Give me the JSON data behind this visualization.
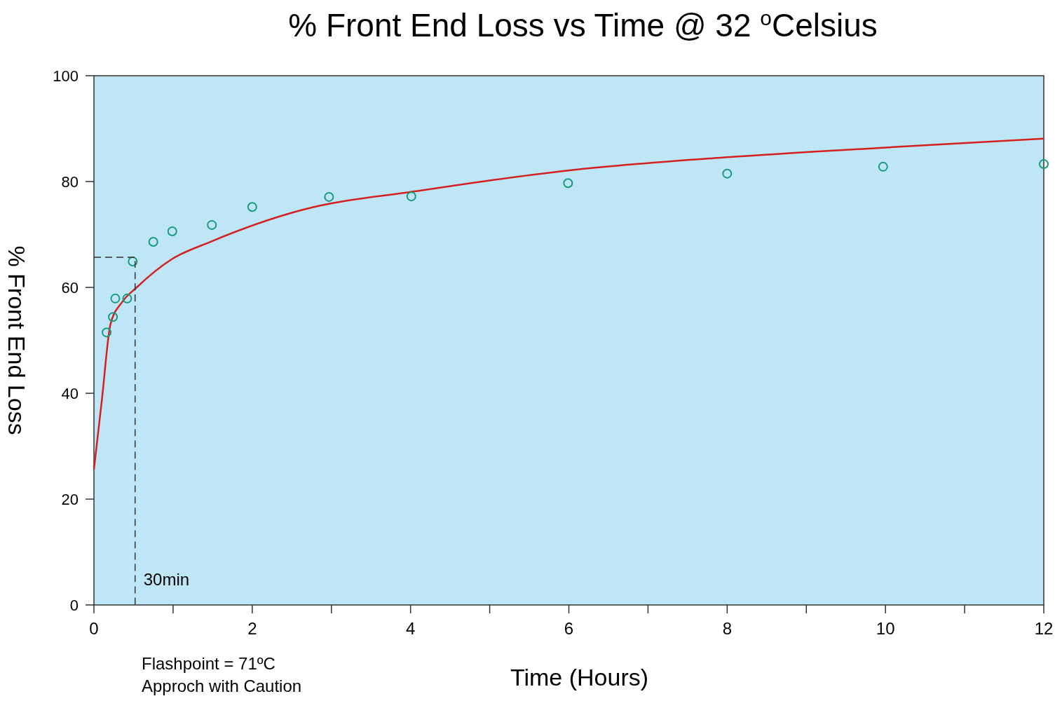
{
  "chart_data": {
    "type": "scatter",
    "title": "% Front End Loss vs Time @ 32 $^{o}$Celsius",
    "xlabel": "Time (Hours)",
    "ylabel": "% Front End Loss",
    "xlim": [
      0,
      12
    ],
    "ylim": [
      0,
      100
    ],
    "xticks": [
      0,
      {
        "value": 1,
        "label": null
      },
      2,
      {
        "value": 3,
        "label": null
      },
      4,
      {
        "value": 5,
        "label": null
      },
      6,
      {
        "value": 7,
        "label": null
      },
      8,
      {
        "value": 9,
        "label": null
      },
      10,
      {
        "value": 11,
        "label": null
      },
      12
    ],
    "yticks": [
      0,
      20,
      40,
      60,
      80,
      100
    ],
    "grid": false,
    "series": [
      {
        "type": "line",
        "color": "#d42020",
        "line_style": "solid",
        "marker": "none",
        "x": [
          0,
          0.1,
          0.21,
          0.36,
          0.54,
          0.98,
          1.47,
          2.62,
          4.13,
          5.99,
          8,
          9.97,
          12
        ],
        "values": [
          25.6,
          38.7,
          53.1,
          57.3,
          60,
          65.3,
          68.6,
          74.6,
          78.3,
          82.1,
          84.6,
          86.4,
          88.1
        ]
      },
      {
        "color": "#1a9a7a",
        "marker": "circle",
        "x": [
          0.16,
          0.24,
          0.27,
          0.42,
          0.49,
          0.75,
          0.99,
          1.49,
          2,
          2.97,
          4.01,
          5.99,
          8,
          9.97,
          12
        ],
        "values": [
          51.5,
          54.4,
          57.9,
          57.9,
          64.9,
          68.6,
          70.6,
          71.8,
          75.2,
          77.1,
          77.2,
          79.7,
          81.5,
          82.8,
          83.3
        ]
      },
      {
        "type": "line",
        "color": "#333333",
        "line_style": "dashed",
        "marker": "none",
        "x": [
          0,
          0.52,
          0.52
        ],
        "values": [
          65.7,
          65.7,
          0
        ]
      }
    ],
    "annotations": [
      {
        "text": "30min",
        "x": 0.52,
        "y": 0
      },
      "Flashpoint = 71ºC",
      "Approch with Caution"
    ]
  }
}
